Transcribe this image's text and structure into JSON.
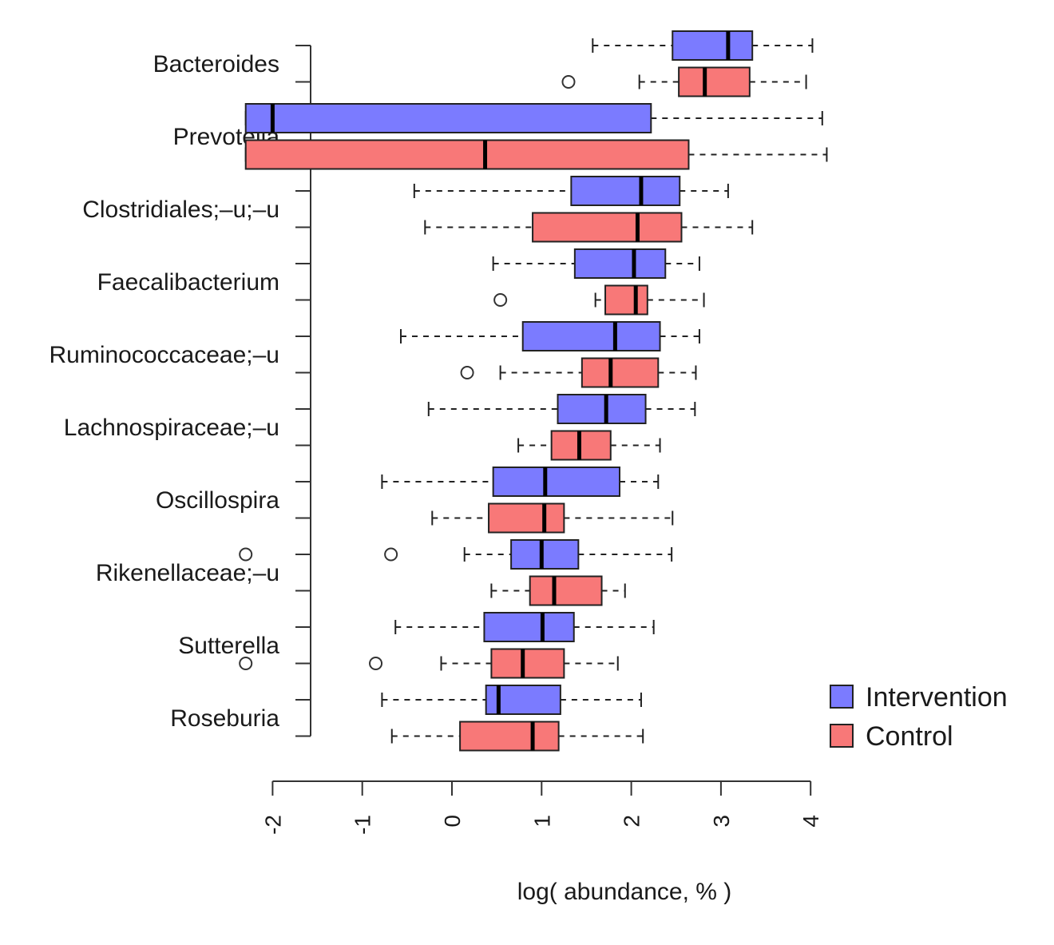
{
  "chart_data": {
    "type": "boxplot",
    "orientation": "horizontal",
    "xlabel": "log( abundance, % )",
    "xlim": [
      -2,
      4
    ],
    "xticks": [
      "-2",
      "-1",
      "0",
      "1",
      "2",
      "3",
      "4"
    ],
    "categories": [
      "Bacteroides",
      "Prevotella",
      "Clostridiales;–u;–u",
      "Faecalibacterium",
      "Ruminococcaceae;–u",
      "Lachnospiraceae;–u",
      "Oscillospira",
      "Rikenellaceae;–u",
      "Sutterella",
      "Roseburia"
    ],
    "series": [
      {
        "name": "Intervention",
        "color": "#7b7bff",
        "boxes": [
          {
            "whisker_low": 1.57,
            "q1": 2.46,
            "median": 3.08,
            "q3": 3.35,
            "whisker_high": 4.02,
            "outliers": []
          },
          {
            "whisker_low": -2.3,
            "q1": -2.3,
            "median": -2.0,
            "q3": 2.22,
            "whisker_high": 4.13,
            "outliers": []
          },
          {
            "whisker_low": -0.42,
            "q1": 1.33,
            "median": 2.11,
            "q3": 2.54,
            "whisker_high": 3.08,
            "outliers": []
          },
          {
            "whisker_low": 0.46,
            "q1": 1.37,
            "median": 2.03,
            "q3": 2.38,
            "whisker_high": 2.76,
            "outliers": []
          },
          {
            "whisker_low": -0.57,
            "q1": 0.79,
            "median": 1.82,
            "q3": 2.32,
            "whisker_high": 2.76,
            "outliers": []
          },
          {
            "whisker_low": -0.26,
            "q1": 1.18,
            "median": 1.72,
            "q3": 2.16,
            "whisker_high": 2.71,
            "outliers": []
          },
          {
            "whisker_low": -0.78,
            "q1": 0.46,
            "median": 1.04,
            "q3": 1.87,
            "whisker_high": 2.3,
            "outliers": []
          },
          {
            "whisker_low": 0.14,
            "q1": 0.66,
            "median": 1.0,
            "q3": 1.41,
            "whisker_high": 2.45,
            "outliers": [
              -2.3,
              -0.68
            ]
          },
          {
            "whisker_low": -0.63,
            "q1": 0.36,
            "median": 1.01,
            "q3": 1.36,
            "whisker_high": 2.25,
            "outliers": []
          },
          {
            "whisker_low": -0.78,
            "q1": 0.38,
            "median": 0.52,
            "q3": 1.21,
            "whisker_high": 2.11,
            "outliers": []
          }
        ]
      },
      {
        "name": "Control",
        "color": "#f87878",
        "boxes": [
          {
            "whisker_low": 2.09,
            "q1": 2.53,
            "median": 2.82,
            "q3": 3.32,
            "whisker_high": 3.95,
            "outliers": [
              1.3
            ]
          },
          {
            "whisker_low": -2.3,
            "q1": -2.3,
            "median": 0.37,
            "q3": 2.64,
            "whisker_high": 4.18,
            "outliers": []
          },
          {
            "whisker_low": -0.3,
            "q1": 0.9,
            "median": 2.07,
            "q3": 2.56,
            "whisker_high": 3.35,
            "outliers": []
          },
          {
            "whisker_low": 1.6,
            "q1": 1.71,
            "median": 2.05,
            "q3": 2.18,
            "whisker_high": 2.81,
            "outliers": [
              0.54
            ]
          },
          {
            "whisker_low": 0.54,
            "q1": 1.45,
            "median": 1.77,
            "q3": 2.3,
            "whisker_high": 2.72,
            "outliers": [
              0.17
            ]
          },
          {
            "whisker_low": 0.74,
            "q1": 1.11,
            "median": 1.42,
            "q3": 1.77,
            "whisker_high": 2.32,
            "outliers": []
          },
          {
            "whisker_low": -0.22,
            "q1": 0.41,
            "median": 1.03,
            "q3": 1.25,
            "whisker_high": 2.46,
            "outliers": []
          },
          {
            "whisker_low": 0.44,
            "q1": 0.87,
            "median": 1.14,
            "q3": 1.67,
            "whisker_high": 1.93,
            "outliers": []
          },
          {
            "whisker_low": -0.12,
            "q1": 0.44,
            "median": 0.79,
            "q3": 1.25,
            "whisker_high": 1.85,
            "outliers": [
              -2.3,
              -0.85
            ]
          },
          {
            "whisker_low": -0.67,
            "q1": 0.09,
            "median": 0.9,
            "q3": 1.19,
            "whisker_high": 2.13,
            "outliers": []
          }
        ]
      }
    ],
    "legend": {
      "placement": "bottom-right",
      "entries": [
        "Intervention",
        "Control"
      ]
    },
    "grid": false
  }
}
